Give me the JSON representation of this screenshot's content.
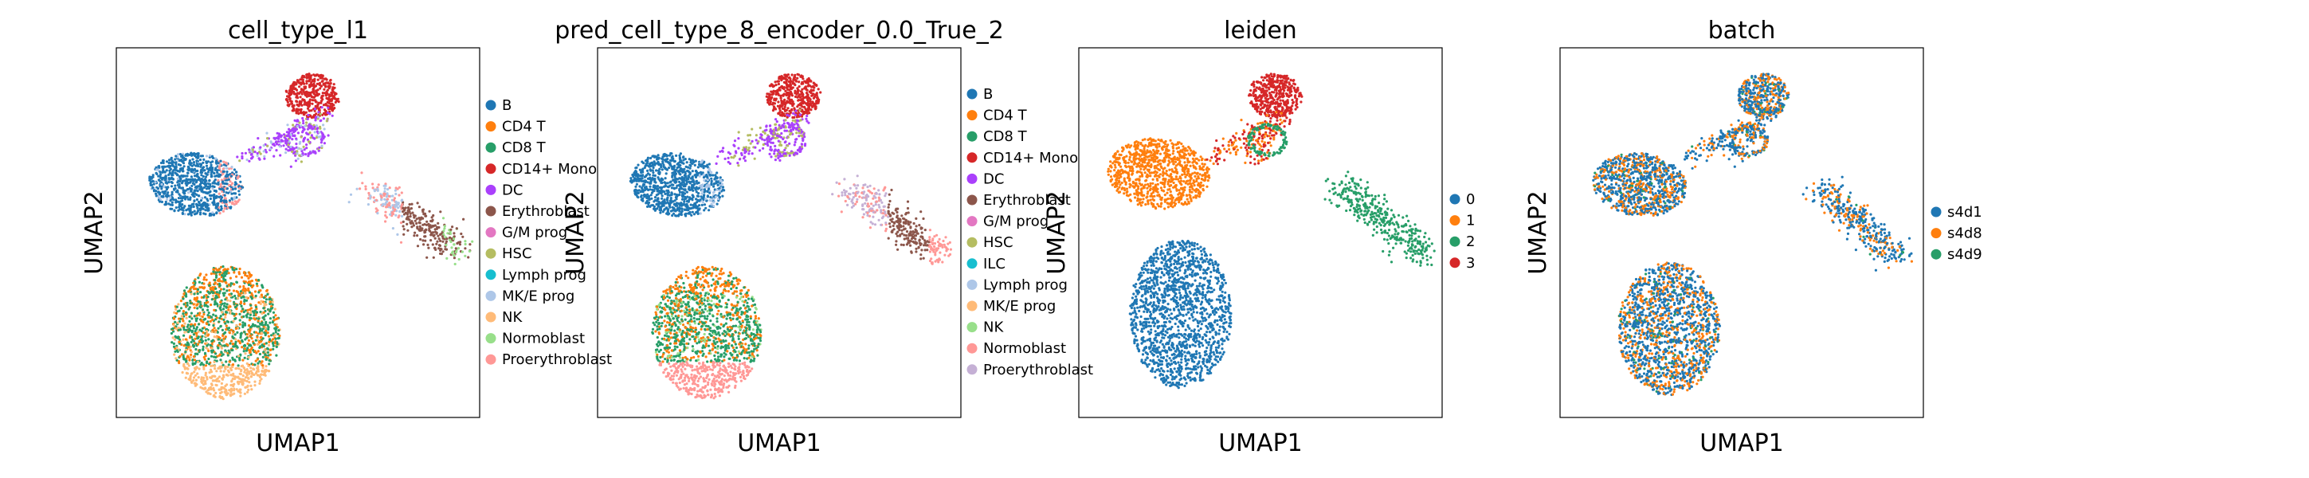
{
  "chart_data": [
    {
      "type": "scatter",
      "title": "cell_type_l1",
      "xlabel": "UMAP1",
      "ylabel": "UMAP2",
      "ticks": "none",
      "legend_position": "right",
      "legend": [
        "B",
        "CD4 T",
        "CD8 T",
        "CD14+ Mono",
        "DC",
        "Erythroblast",
        "G/M prog",
        "HSC",
        "Lymph prog",
        "MK/E prog",
        "NK",
        "Normoblast",
        "Proerythroblast"
      ],
      "colors": [
        "#1f77b4",
        "#ff7f0e",
        "#279e68",
        "#d62728",
        "#aa40fc",
        "#8c564b",
        "#e377c2",
        "#b5bd61",
        "#17becf",
        "#aec7e8",
        "#ffbb78",
        "#98df8a",
        "#ff9896"
      ]
    },
    {
      "type": "scatter",
      "title": "pred_cell_type_8_encoder_0.0_True_2",
      "xlabel": "UMAP1",
      "ylabel": "UMAP2",
      "ticks": "none",
      "legend_position": "right",
      "legend": [
        "B",
        "CD4 T",
        "CD8 T",
        "CD14+ Mono",
        "DC",
        "Erythroblast",
        "G/M prog",
        "HSC",
        "ILC",
        "Lymph prog",
        "MK/E prog",
        "NK",
        "Normoblast",
        "Proerythroblast"
      ],
      "colors": [
        "#1f77b4",
        "#ff7f0e",
        "#279e68",
        "#d62728",
        "#aa40fc",
        "#8c564b",
        "#e377c2",
        "#b5bd61",
        "#17becf",
        "#aec7e8",
        "#ffbb78",
        "#98df8a",
        "#ff9896",
        "#c5b0d5"
      ]
    },
    {
      "type": "scatter",
      "title": "leiden",
      "xlabel": "UMAP1",
      "ylabel": "UMAP2",
      "ticks": "none",
      "legend_position": "right",
      "legend": [
        "0",
        "1",
        "2",
        "3"
      ],
      "colors": [
        "#1f77b4",
        "#ff7f0e",
        "#279e68",
        "#d62728"
      ]
    },
    {
      "type": "scatter",
      "title": "batch",
      "xlabel": "UMAP1",
      "ylabel": "UMAP2",
      "ticks": "none",
      "legend_position": "right",
      "legend": [
        "s4d1",
        "s4d8",
        "s4d9"
      ],
      "colors": [
        "#1f77b4",
        "#ff7f0e",
        "#279e68"
      ]
    }
  ]
}
